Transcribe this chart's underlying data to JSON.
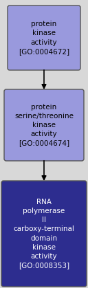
{
  "background_color": "#d8d8d8",
  "boxes": [
    {
      "label": "protein\nkinase\nactivity\n[GO:0004672]",
      "facecolor": "#9999dd",
      "edgecolor": "#555555",
      "text_color": "#000000",
      "fontsize": 7.5
    },
    {
      "label": "protein\nserine/threonine\nkinase\nactivity\n[GO:0004674]",
      "facecolor": "#9999dd",
      "edgecolor": "#555555",
      "text_color": "#000000",
      "fontsize": 7.5
    },
    {
      "label": "RNA\npolymerase\nII\ncarboxy-terminal\ndomain\nkinase\nactivity\n[GO:0008353]",
      "facecolor": "#2d2d8f",
      "edgecolor": "#555555",
      "text_color": "#ffffff",
      "fontsize": 7.5
    }
  ],
  "arrow_color": "#000000",
  "fig_width": 1.28,
  "fig_height": 4.19,
  "dpi": 100
}
